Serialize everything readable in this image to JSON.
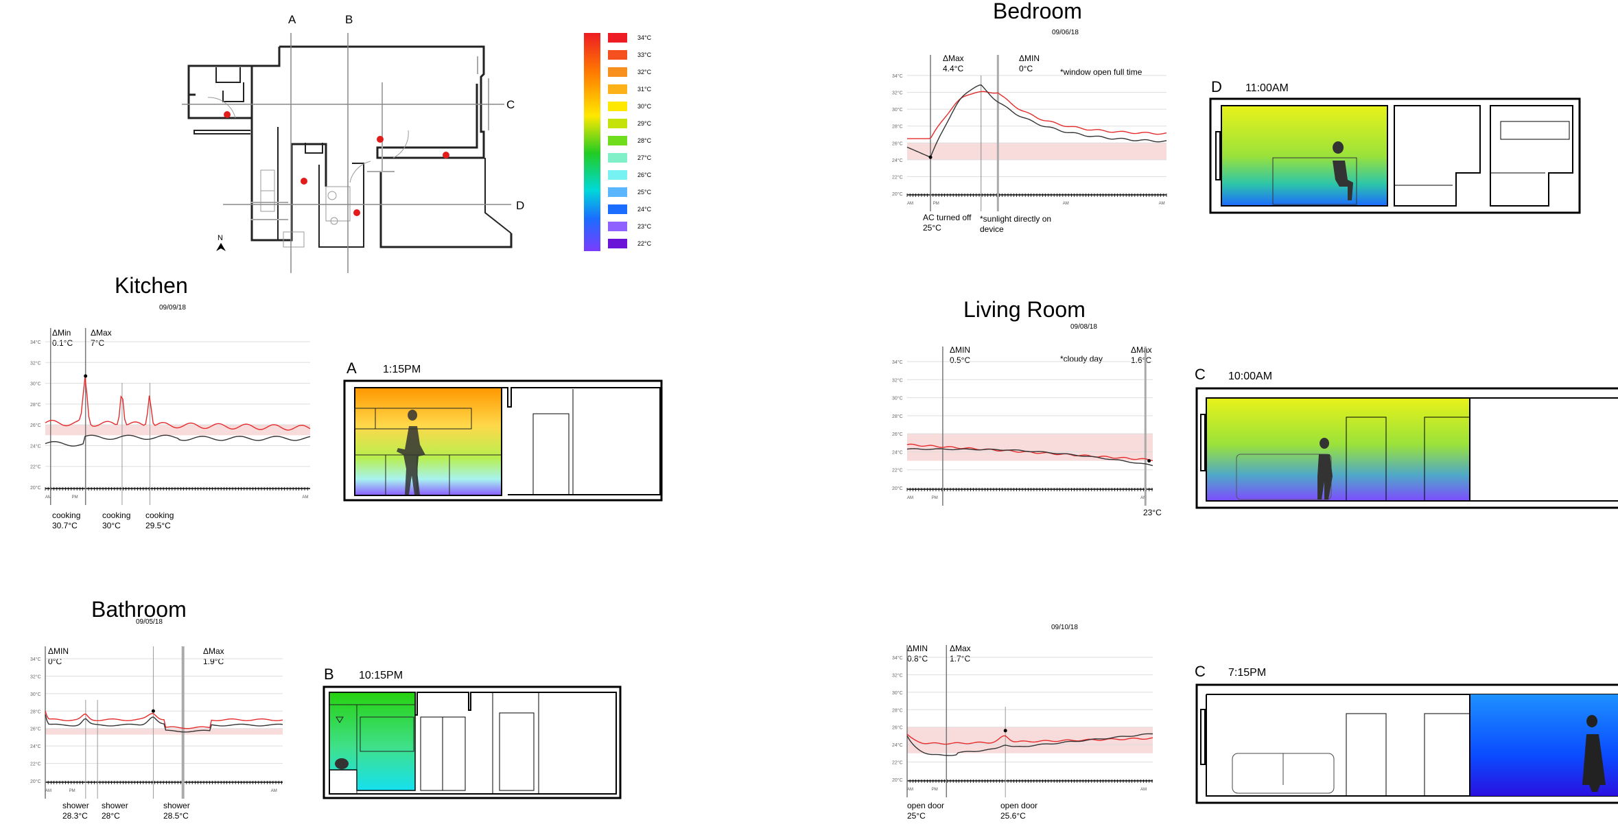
{
  "plan": {
    "cut_labels": [
      "A",
      "B",
      "C",
      "D"
    ],
    "north": "N"
  },
  "legend": {
    "items": [
      {
        "label": "34°C",
        "color": "#ee1c24"
      },
      {
        "label": "33°C",
        "color": "#f4511e"
      },
      {
        "label": "32°C",
        "color": "#f7901e"
      },
      {
        "label": "31°C",
        "color": "#fbb117"
      },
      {
        "label": "30°C",
        "color": "#ffe800"
      },
      {
        "label": "29°C",
        "color": "#c5e20b"
      },
      {
        "label": "28°C",
        "color": "#6fdc1c"
      },
      {
        "label": "27°C",
        "color": "#7ff0c8"
      },
      {
        "label": "26°C",
        "color": "#76f2f2"
      },
      {
        "label": "25°C",
        "color": "#5cb6ff"
      },
      {
        "label": "24°C",
        "color": "#1b6dff"
      },
      {
        "label": "23°C",
        "color": "#8f62ff"
      },
      {
        "label": "22°C",
        "color": "#6a14d8"
      }
    ]
  },
  "y_ticks": [
    "34°C",
    "32°C",
    "30°C",
    "28°C",
    "26°C",
    "24°C",
    "22°C",
    "20°C"
  ],
  "rooms": {
    "kitchen": {
      "title": "Kitchen",
      "date": "09/09/18",
      "min_note": "ΔMin\n0.1°C",
      "max_note": "ΔMax\n7°C",
      "events": [
        "cooking\n30.7°C",
        "cooking\n30°C",
        "cooking\n29.5°C"
      ],
      "x_labels": [
        "AM",
        "PM",
        "AM"
      ],
      "section": {
        "letter": "A",
        "time": "1:15PM"
      }
    },
    "bathroom": {
      "title": "Bathroom",
      "date": "09/05/18",
      "min_note": "ΔMIN\n0°C",
      "max_note": "ΔMax\n1.9°C",
      "events": [
        "shower\n28.3°C",
        "shower\n28°C",
        "shower\n28.5°C"
      ],
      "x_labels": [
        "AM",
        "PM",
        "AM"
      ],
      "section": {
        "letter": "B",
        "time": "10:15PM"
      }
    },
    "bedroom": {
      "title": "Bedroom",
      "date": "09/06/18",
      "max_note": "ΔMax\n4.4°C",
      "min_note": "ΔMIN\n0°C",
      "extra_note": "*window open full time",
      "events": [
        "AC turned off\n25°C",
        "*sunlight directly on\ndevice"
      ],
      "x_labels": [
        "AM",
        "PM",
        "AM",
        "AM"
      ],
      "section": {
        "letter": "D",
        "time": "11:00AM"
      }
    },
    "living": {
      "title": "Living Room",
      "date": "09/08/18",
      "min_note": "ΔMIN\n0.5°C",
      "max_note": "ΔMax\n1.6°C",
      "extra_note": "*cloudy day",
      "events": [
        "23°C"
      ],
      "x_labels": [
        "AM",
        "PM",
        "AM"
      ],
      "section": {
        "letter": "C",
        "time": "10:00AM"
      }
    },
    "room5": {
      "title": "",
      "date": "09/10/18",
      "min_note": "ΔMIN\n0.8°C",
      "max_note": "ΔMax\n1.7°C",
      "events": [
        "open door\n25°C",
        "open door\n25.6°C"
      ],
      "x_labels": [
        "AM",
        "PM",
        "AM"
      ],
      "section": {
        "letter": "C",
        "time": "7:15PM"
      }
    }
  },
  "colors": {
    "outdoor": "#e52b2b",
    "indoor": "#333333",
    "band": "#f8dcdc"
  }
}
